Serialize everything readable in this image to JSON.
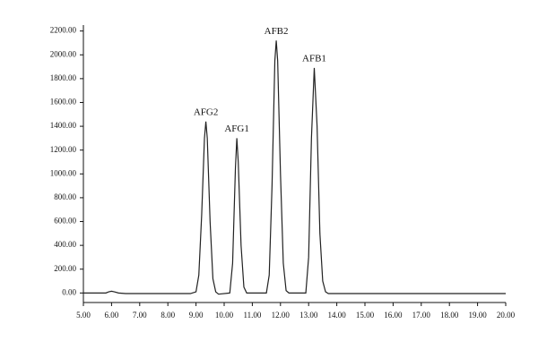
{
  "chart_data": {
    "type": "line",
    "x": [
      5.0,
      5.8,
      5.9,
      6.0,
      6.1,
      6.25,
      6.5,
      8.8,
      9.0,
      9.1,
      9.2,
      9.3,
      9.35,
      9.4,
      9.5,
      9.6,
      9.7,
      9.8,
      10.2,
      10.3,
      10.4,
      10.45,
      10.5,
      10.6,
      10.7,
      10.8,
      11.5,
      11.6,
      11.7,
      11.8,
      11.85,
      11.9,
      12.0,
      12.1,
      12.2,
      12.3,
      12.9,
      13.0,
      13.1,
      13.2,
      13.3,
      13.4,
      13.5,
      13.6,
      13.7,
      14.0,
      20.0
    ],
    "series": [
      {
        "color": "#222222",
        "values": [
          0,
          0,
          10,
          15,
          10,
          0,
          -5,
          -5,
          10,
          150,
          650,
          1300,
          1440,
          1300,
          600,
          120,
          10,
          -10,
          0,
          250,
          1050,
          1300,
          1100,
          400,
          50,
          0,
          0,
          150,
          900,
          1950,
          2120,
          1950,
          1000,
          250,
          20,
          0,
          0,
          300,
          1300,
          1890,
          1400,
          500,
          100,
          10,
          -5,
          -5,
          -5
        ]
      }
    ],
    "annotations": [
      {
        "text": "AFG2",
        "x": 9.35,
        "y": 1440
      },
      {
        "text": "AFG1",
        "x": 10.45,
        "y": 1300
      },
      {
        "text": "AFB2",
        "x": 11.85,
        "y": 2120
      },
      {
        "text": "AFB1",
        "x": 13.2,
        "y": 1890
      }
    ],
    "xlim": [
      5,
      20
    ],
    "ylim": [
      -80,
      2250
    ],
    "xticks": [
      {
        "value": 5,
        "label": "5.00"
      },
      {
        "value": 6,
        "label": "6.00"
      },
      {
        "value": 7,
        "label": "7.00"
      },
      {
        "value": 8,
        "label": "8.00"
      },
      {
        "value": 9,
        "label": "9.00"
      },
      {
        "value": 10,
        "label": "10.00"
      },
      {
        "value": 11,
        "label": "11.00"
      },
      {
        "value": 12,
        "label": "12.00"
      },
      {
        "value": 13,
        "label": "13.00"
      },
      {
        "value": 14,
        "label": "14.00"
      },
      {
        "value": 15,
        "label": "15.00"
      },
      {
        "value": 16,
        "label": "16.00"
      },
      {
        "value": 17,
        "label": "17.00"
      },
      {
        "value": 18,
        "label": "18.00"
      },
      {
        "value": 19,
        "label": "19.00"
      },
      {
        "value": 20,
        "label": "20.00"
      }
    ],
    "yticks": [
      {
        "value": 0,
        "label": "0.00"
      },
      {
        "value": 200,
        "label": "200.00"
      },
      {
        "value": 400,
        "label": "400.00"
      },
      {
        "value": 600,
        "label": "600.00"
      },
      {
        "value": 800,
        "label": "800.00"
      },
      {
        "value": 1000,
        "label": "1000.00"
      },
      {
        "value": 1200,
        "label": "1200.00"
      },
      {
        "value": 1400,
        "label": "1400.00"
      },
      {
        "value": 1600,
        "label": "1600.00"
      },
      {
        "value": 1800,
        "label": "1800.00"
      },
      {
        "value": 2000,
        "label": "2000.00"
      },
      {
        "value": 2200,
        "label": "2200.00"
      }
    ],
    "grid": false
  }
}
